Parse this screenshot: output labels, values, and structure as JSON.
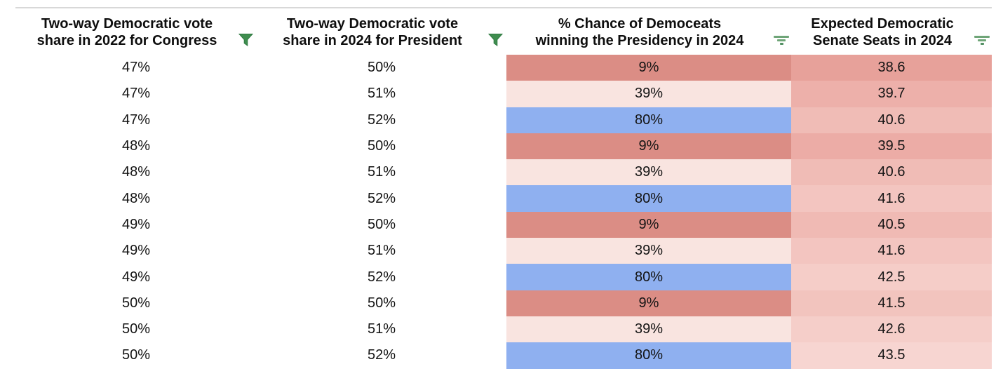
{
  "table": {
    "columns": [
      {
        "line1": "Two-way Democratic vote",
        "line2": "share in 2022 for Congress",
        "icon": "funnel-filter"
      },
      {
        "line1": "Two-way Democratic vote",
        "line2": "share in 2024 for President",
        "icon": "funnel-filter"
      },
      {
        "line1": "% Chance of Democeats",
        "line2": "winning the Presidency in 2024",
        "icon": "lines-filter"
      },
      {
        "line1": "Expected Democratic",
        "line2": "Senate Seats in 2024",
        "icon": "lines-filter"
      }
    ],
    "rows": [
      {
        "congress_2022": "47%",
        "president_2024": "50%",
        "chance_presidency": "9%",
        "chance_bg": "#db8d85",
        "senate_seats": "38.6",
        "seats_bg": "#e7a19a"
      },
      {
        "congress_2022": "47%",
        "president_2024": "51%",
        "chance_presidency": "39%",
        "chance_bg": "#f9e4e0",
        "senate_seats": "39.7",
        "seats_bg": "#edb0aa"
      },
      {
        "congress_2022": "47%",
        "president_2024": "52%",
        "chance_presidency": "80%",
        "chance_bg": "#8fb0f0",
        "senate_seats": "40.6",
        "seats_bg": "#f0bcb6"
      },
      {
        "congress_2022": "48%",
        "president_2024": "50%",
        "chance_presidency": "9%",
        "chance_bg": "#db8d85",
        "senate_seats": "39.5",
        "seats_bg": "#ecaca6"
      },
      {
        "congress_2022": "48%",
        "president_2024": "51%",
        "chance_presidency": "39%",
        "chance_bg": "#f9e4e0",
        "senate_seats": "40.6",
        "seats_bg": "#f0bcb6"
      },
      {
        "congress_2022": "48%",
        "president_2024": "52%",
        "chance_presidency": "80%",
        "chance_bg": "#8fb0f0",
        "senate_seats": "41.6",
        "seats_bg": "#f3c5c0"
      },
      {
        "congress_2022": "49%",
        "president_2024": "50%",
        "chance_presidency": "9%",
        "chance_bg": "#db8d85",
        "senate_seats": "40.5",
        "seats_bg": "#f0bab4"
      },
      {
        "congress_2022": "49%",
        "president_2024": "51%",
        "chance_presidency": "39%",
        "chance_bg": "#f9e4e0",
        "senate_seats": "41.6",
        "seats_bg": "#f3c5c0"
      },
      {
        "congress_2022": "49%",
        "president_2024": "52%",
        "chance_presidency": "80%",
        "chance_bg": "#8fb0f0",
        "senate_seats": "42.5",
        "seats_bg": "#f5cdc8"
      },
      {
        "congress_2022": "50%",
        "president_2024": "50%",
        "chance_presidency": "9%",
        "chance_bg": "#db8d85",
        "senate_seats": "41.5",
        "seats_bg": "#f2c4be"
      },
      {
        "congress_2022": "50%",
        "president_2024": "51%",
        "chance_presidency": "39%",
        "chance_bg": "#f9e4e0",
        "senate_seats": "42.6",
        "seats_bg": "#f5cec9"
      },
      {
        "congress_2022": "50%",
        "president_2024": "52%",
        "chance_presidency": "80%",
        "chance_bg": "#8fb0f0",
        "senate_seats": "43.5",
        "seats_bg": "#f7d5d1"
      }
    ]
  },
  "colors": {
    "top_border": "#d8d8d8",
    "funnel_filter_icon": "#3f8d4f",
    "lines_filter_icon": "#6fa578",
    "lines_filter_icon_dark": "#549165",
    "chance_low": "#db8d85",
    "chance_mid": "#f9e4e0",
    "chance_high": "#8fb0f0",
    "seats_scale_dark": "#e7a19a",
    "seats_scale_light": "#f7d5d1"
  }
}
